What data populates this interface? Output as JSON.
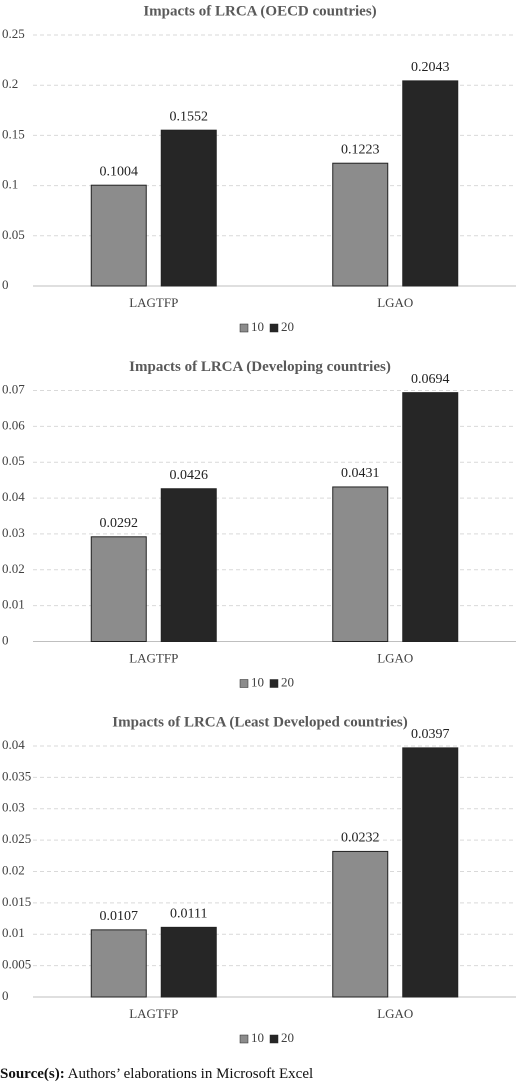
{
  "chart_data": [
    {
      "type": "bar",
      "title": "Impacts of LRCA (OECD countries)",
      "categories": [
        "LAGTFP",
        "LGAO"
      ],
      "series": [
        {
          "name": "10",
          "color": "#8c8c8c",
          "values": [
            0.1004,
            0.1223
          ]
        },
        {
          "name": "20",
          "color": "#262626",
          "values": [
            0.1552,
            0.2043
          ]
        }
      ],
      "ylim": [
        0,
        0.25
      ],
      "yticks": [
        0,
        0.05,
        0.1,
        0.15,
        0.2,
        0.25
      ],
      "grid": true,
      "legend": "bottom"
    },
    {
      "type": "bar",
      "title": "Impacts of LRCA (Developing countries)",
      "categories": [
        "LAGTFP",
        "LGAO"
      ],
      "series": [
        {
          "name": "10",
          "color": "#8c8c8c",
          "values": [
            0.0292,
            0.0431
          ]
        },
        {
          "name": "20",
          "color": "#262626",
          "values": [
            0.0426,
            0.0694
          ]
        }
      ],
      "ylim": [
        0,
        0.07
      ],
      "yticks": [
        0,
        0.01,
        0.02,
        0.03,
        0.04,
        0.05,
        0.06,
        0.07
      ],
      "grid": true,
      "legend": "bottom"
    },
    {
      "type": "bar",
      "title": "Impacts of LRCA (Least Developed countries)",
      "categories": [
        "LAGTFP",
        "LGAO"
      ],
      "series": [
        {
          "name": "10",
          "color": "#8c8c8c",
          "values": [
            0.0107,
            0.0232
          ]
        },
        {
          "name": "20",
          "color": "#262626",
          "values": [
            0.0111,
            0.0397
          ]
        }
      ],
      "ylim": [
        0,
        0.04
      ],
      "yticks": [
        0,
        0.005,
        0.01,
        0.015,
        0.02,
        0.025,
        0.03,
        0.035,
        0.04
      ],
      "grid": true,
      "legend": "bottom"
    }
  ],
  "source": {
    "label": "Source(s):",
    "text": "Authors’ elaborations in Microsoft Excel"
  }
}
